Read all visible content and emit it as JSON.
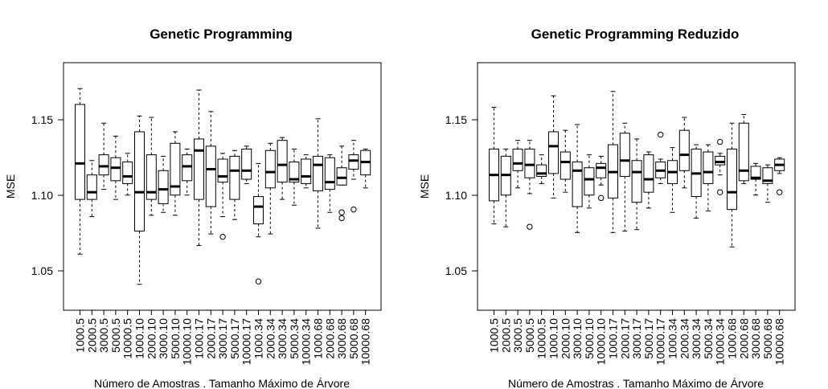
{
  "chart_data": [
    {
      "type": "box",
      "title": "Genetic Programming",
      "xlabel": "Número de Amostras . Tamanho Máximo de Árvore",
      "ylabel": "MSE",
      "ylim": [
        1.013,
        1.185
      ],
      "yticks": [
        "1.05",
        "1.10",
        "1.15"
      ],
      "categories": [
        "1000.5",
        "2000.5",
        "3000.5",
        "5000.5",
        "10000.5",
        "1000.10",
        "2000.10",
        "3000.10",
        "5000.10",
        "10000.10",
        "1000.17",
        "2000.17",
        "3000.17",
        "5000.17",
        "10000.17",
        "1000.34",
        "2000.34",
        "3000.34",
        "5000.34",
        "10000.34",
        "1000.68",
        "2000.68",
        "3000.68",
        "5000.68",
        "10000.68"
      ],
      "boxes": [
        {
          "wlo": 1.052,
          "q1": 1.09,
          "med": 1.115,
          "q3": 1.156,
          "whi": 1.167,
          "out": []
        },
        {
          "wlo": 1.078,
          "q1": 1.09,
          "med": 1.095,
          "q3": 1.107,
          "whi": 1.117,
          "out": []
        },
        {
          "wlo": 1.097,
          "q1": 1.107,
          "med": 1.113,
          "q3": 1.121,
          "whi": 1.143,
          "out": []
        },
        {
          "wlo": 1.09,
          "q1": 1.103,
          "med": 1.112,
          "q3": 1.119,
          "whi": 1.134,
          "out": []
        },
        {
          "wlo": 1.093,
          "q1": 1.101,
          "med": 1.106,
          "q3": 1.116,
          "whi": 1.122,
          "out": []
        },
        {
          "wlo": 1.031,
          "q1": 1.068,
          "med": 1.095,
          "q3": 1.137,
          "whi": 1.148,
          "out": []
        },
        {
          "wlo": 1.079,
          "q1": 1.09,
          "med": 1.095,
          "q3": 1.121,
          "whi": 1.147,
          "out": []
        },
        {
          "wlo": 1.081,
          "q1": 1.087,
          "med": 1.097,
          "q3": 1.11,
          "whi": 1.12,
          "out": []
        },
        {
          "wlo": 1.079,
          "q1": 1.093,
          "med": 1.099,
          "q3": 1.129,
          "whi": 1.137,
          "out": []
        },
        {
          "wlo": 1.093,
          "q1": 1.103,
          "med": 1.113,
          "q3": 1.121,
          "whi": 1.125,
          "out": []
        },
        {
          "wlo": 1.058,
          "q1": 1.09,
          "med": 1.124,
          "q3": 1.132,
          "whi": 1.166,
          "out": []
        },
        {
          "wlo": 1.066,
          "q1": 1.085,
          "med": 1.111,
          "q3": 1.127,
          "whi": 1.151,
          "out": []
        },
        {
          "wlo": 1.078,
          "q1": 1.102,
          "med": 1.106,
          "q3": 1.118,
          "whi": 1.122,
          "out": [
            1.064
          ]
        },
        {
          "wlo": 1.076,
          "q1": 1.09,
          "med": 1.11,
          "q3": 1.12,
          "whi": 1.124,
          "out": []
        },
        {
          "wlo": 1.101,
          "q1": 1.104,
          "med": 1.11,
          "q3": 1.125,
          "whi": 1.127,
          "out": []
        },
        {
          "wlo": 1.064,
          "q1": 1.073,
          "med": 1.085,
          "q3": 1.092,
          "whi": 1.115,
          "out": [
            1.033
          ]
        },
        {
          "wlo": 1.066,
          "q1": 1.098,
          "med": 1.109,
          "q3": 1.124,
          "whi": 1.129,
          "out": []
        },
        {
          "wlo": 1.09,
          "q1": 1.102,
          "med": 1.114,
          "q3": 1.131,
          "whi": 1.133,
          "out": []
        },
        {
          "wlo": 1.086,
          "q1": 1.102,
          "med": 1.104,
          "q3": 1.116,
          "whi": 1.125,
          "out": []
        },
        {
          "wlo": 1.098,
          "q1": 1.101,
          "med": 1.106,
          "q3": 1.118,
          "whi": 1.121,
          "out": []
        },
        {
          "wlo": 1.07,
          "q1": 1.096,
          "med": 1.114,
          "q3": 1.12,
          "whi": 1.146,
          "out": []
        },
        {
          "wlo": 1.081,
          "q1": 1.097,
          "med": 1.102,
          "q3": 1.119,
          "whi": 1.121,
          "out": []
        },
        {
          "wlo": 1.1,
          "q1": 1.1,
          "med": 1.105,
          "q3": 1.112,
          "whi": 1.127,
          "out": [
            1.081,
            1.077
          ]
        },
        {
          "wlo": 1.104,
          "q1": 1.111,
          "med": 1.117,
          "q3": 1.121,
          "whi": 1.131,
          "out": [
            1.083
          ]
        },
        {
          "wlo": 1.098,
          "q1": 1.107,
          "med": 1.116,
          "q3": 1.124,
          "whi": 1.125,
          "out": []
        }
      ]
    },
    {
      "type": "box",
      "title": "Genetic Programming Reduzido",
      "xlabel": "Número de Amostras . Tamanho Máximo de Árvore",
      "ylabel": "MSE",
      "ylim": [
        1.013,
        1.185
      ],
      "yticks": [
        "1.05",
        "1.10",
        "1.15"
      ],
      "categories": [
        "1000.5",
        "2000.5",
        "3000.5",
        "5000.5",
        "10000.5",
        "1000.10",
        "2000.10",
        "3000.10",
        "5000.10",
        "10000.10",
        "1000.17",
        "2000.17",
        "3000.17",
        "5000.17",
        "10000.17",
        "1000.34",
        "2000.34",
        "3000.34",
        "5000.34",
        "10000.34",
        "1000.68",
        "2000.68",
        "3000.68",
        "5000.68",
        "10000.68"
      ],
      "boxes": [
        {
          "wlo": 1.073,
          "q1": 1.089,
          "med": 1.107,
          "q3": 1.125,
          "whi": 1.154,
          "out": []
        },
        {
          "wlo": 1.071,
          "q1": 1.093,
          "med": 1.107,
          "q3": 1.12,
          "whi": 1.125,
          "out": []
        },
        {
          "wlo": 1.098,
          "q1": 1.11,
          "med": 1.115,
          "q3": 1.125,
          "whi": 1.131,
          "out": []
        },
        {
          "wlo": 1.094,
          "q1": 1.105,
          "med": 1.114,
          "q3": 1.125,
          "whi": 1.131,
          "out": [
            1.071
          ]
        },
        {
          "wlo": 1.101,
          "q1": 1.106,
          "med": 1.108,
          "q3": 1.114,
          "whi": 1.121,
          "out": []
        },
        {
          "wlo": 1.091,
          "q1": 1.108,
          "med": 1.127,
          "q3": 1.137,
          "whi": 1.162,
          "out": []
        },
        {
          "wlo": 1.095,
          "q1": 1.104,
          "med": 1.116,
          "q3": 1.123,
          "whi": 1.138,
          "out": []
        },
        {
          "wlo": 1.067,
          "q1": 1.085,
          "med": 1.11,
          "q3": 1.116,
          "whi": 1.142,
          "out": []
        },
        {
          "wlo": 1.084,
          "q1": 1.093,
          "med": 1.104,
          "q3": 1.112,
          "whi": 1.121,
          "out": []
        },
        {
          "wlo": 1.1,
          "q1": 1.105,
          "med": 1.112,
          "q3": 1.115,
          "whi": 1.12,
          "out": [
            1.091
          ]
        },
        {
          "wlo": 1.067,
          "q1": 1.091,
          "med": 1.109,
          "q3": 1.128,
          "whi": 1.165,
          "out": []
        },
        {
          "wlo": 1.068,
          "q1": 1.106,
          "med": 1.117,
          "q3": 1.136,
          "whi": 1.143,
          "out": []
        },
        {
          "wlo": 1.069,
          "q1": 1.088,
          "med": 1.109,
          "q3": 1.117,
          "whi": 1.132,
          "out": []
        },
        {
          "wlo": 1.084,
          "q1": 1.095,
          "med": 1.104,
          "q3": 1.121,
          "whi": 1.123,
          "out": []
        },
        {
          "wlo": 1.101,
          "q1": 1.105,
          "med": 1.11,
          "q3": 1.116,
          "whi": 1.118,
          "out": [
            1.135
          ]
        },
        {
          "wlo": 1.081,
          "q1": 1.101,
          "med": 1.109,
          "q3": 1.117,
          "whi": 1.126,
          "out": []
        },
        {
          "wlo": 1.098,
          "q1": 1.11,
          "med": 1.121,
          "q3": 1.138,
          "whi": 1.147,
          "out": []
        },
        {
          "wlo": 1.077,
          "q1": 1.092,
          "med": 1.108,
          "q3": 1.125,
          "whi": 1.128,
          "out": []
        },
        {
          "wlo": 1.082,
          "q1": 1.101,
          "med": 1.109,
          "q3": 1.123,
          "whi": 1.128,
          "out": []
        },
        {
          "wlo": 1.107,
          "q1": 1.114,
          "med": 1.116,
          "q3": 1.12,
          "whi": 1.122,
          "out": [
            1.13,
            1.095
          ]
        },
        {
          "wlo": 1.057,
          "q1": 1.083,
          "med": 1.095,
          "q3": 1.125,
          "whi": 1.143,
          "out": []
        },
        {
          "wlo": 1.101,
          "q1": 1.103,
          "med": 1.11,
          "q3": 1.143,
          "whi": 1.149,
          "out": []
        },
        {
          "wlo": 1.093,
          "q1": 1.104,
          "med": 1.105,
          "q3": 1.113,
          "whi": 1.115,
          "out": []
        },
        {
          "wlo": 1.088,
          "q1": 1.101,
          "med": 1.103,
          "q3": 1.112,
          "whi": 1.114,
          "out": []
        },
        {
          "wlo": 1.108,
          "q1": 1.11,
          "med": 1.114,
          "q3": 1.118,
          "whi": 1.119,
          "out": [
            1.095
          ]
        }
      ]
    }
  ]
}
